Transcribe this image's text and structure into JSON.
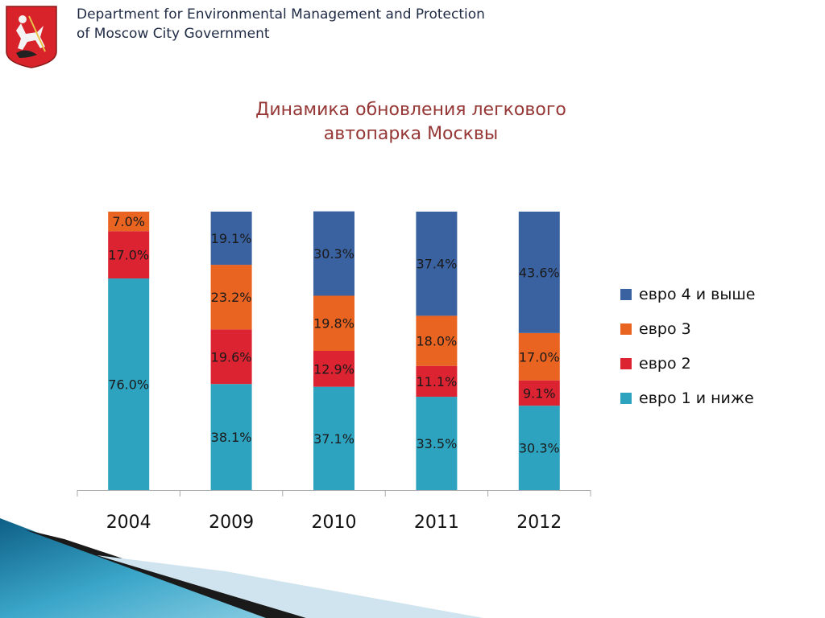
{
  "header": {
    "department_line1": "Department for Environmental Management and Protection",
    "department_line2": "of Moscow City Government"
  },
  "slide": {
    "title_line1": "Динамика обновления легкового",
    "title_line2": "автопарка Москвы"
  },
  "chart_data": {
    "type": "bar",
    "stacked": true,
    "categories": [
      "2004",
      "2009",
      "2010",
      "2011",
      "2012"
    ],
    "series": [
      {
        "name": "евро 1 и ниже",
        "color": "#2ea3bf",
        "values": [
          76.0,
          38.1,
          37.1,
          33.5,
          30.3
        ],
        "labels": [
          "76.0%",
          "38.1%",
          "37.1%",
          "33.5%",
          "30.3%"
        ]
      },
      {
        "name": "евро 2",
        "color": "#dc2331",
        "values": [
          17.0,
          19.6,
          12.9,
          11.1,
          9.1
        ],
        "labels": [
          "17.0%",
          "19.6%",
          "12.9%",
          "11.1%",
          "9.1%"
        ]
      },
      {
        "name": "евро 3",
        "color": "#ea6421",
        "values": [
          7.0,
          23.2,
          19.8,
          18.0,
          17.0
        ],
        "labels": [
          "7.0%",
          "23.2%",
          "19.8%",
          "18.0%",
          "17.0%"
        ]
      },
      {
        "name": "евро 4 и выше",
        "color": "#3a62a0",
        "values": [
          0,
          19.1,
          30.3,
          37.4,
          43.6
        ],
        "labels": [
          "",
          "19.1%",
          "30.3%",
          "37.4%",
          "43.6%"
        ]
      }
    ],
    "ylim": [
      0,
      100
    ],
    "legend_position": "right",
    "legend_order": [
      "евро 4 и выше",
      "евро 3",
      "евро 2",
      "евро 1 и ниже"
    ],
    "grid": false
  }
}
